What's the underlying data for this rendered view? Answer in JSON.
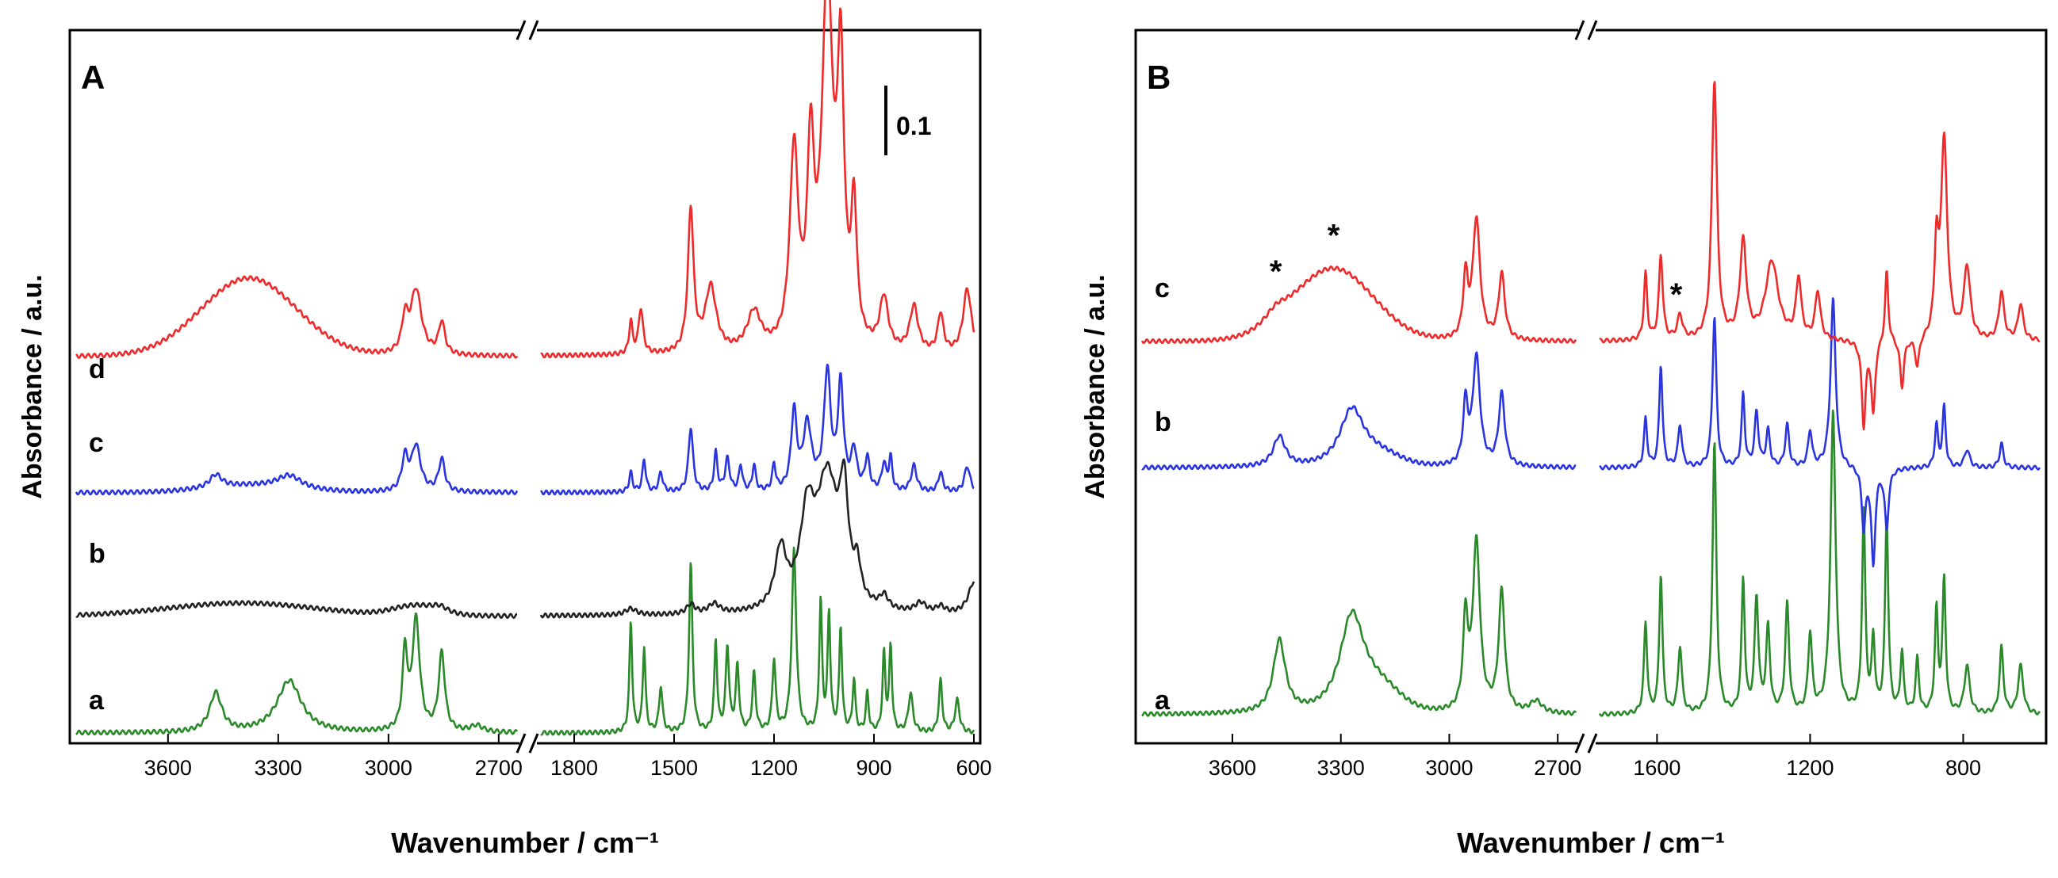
{
  "figure": {
    "panels": [
      "A",
      "B"
    ],
    "scale_bar_label": "0.1"
  },
  "colors": {
    "a": "#2a8a2a",
    "b_black": "#222222",
    "blue": "#2a35e0",
    "red": "#ee2a2a"
  },
  "chart_data": [
    {
      "type": "line",
      "panel": "A",
      "ylabel": "Absorbance / a.u.",
      "xlabel": "Wavenumber / cm⁻¹",
      "x_axis_break": true,
      "x_segments": [
        {
          "xlim": [
            3850,
            2650
          ],
          "ticks": [
            3600,
            3300,
            3000,
            2700
          ]
        },
        {
          "xlim": [
            1900,
            600
          ],
          "ticks": [
            1800,
            1500,
            1200,
            900,
            600
          ]
        }
      ],
      "series": [
        {
          "name": "a",
          "color": "#2a8a2a",
          "peaks_high": [
            [
              3470,
              0.06,
              20
            ],
            [
              3270,
              0.08,
              40
            ],
            [
              2955,
              0.12,
              8
            ],
            [
              2925,
              0.17,
              12
            ],
            [
              2855,
              0.12,
              10
            ],
            [
              2760,
              0.01,
              20
            ]
          ],
          "peaks_low": [
            [
              1630,
              0.17,
              5
            ],
            [
              1590,
              0.13,
              5
            ],
            [
              1540,
              0.07,
              6
            ],
            [
              1450,
              0.26,
              6
            ],
            [
              1375,
              0.14,
              5
            ],
            [
              1340,
              0.13,
              6
            ],
            [
              1310,
              0.1,
              6
            ],
            [
              1260,
              0.09,
              6
            ],
            [
              1200,
              0.11,
              6
            ],
            [
              1140,
              0.28,
              8
            ],
            [
              1060,
              0.2,
              5
            ],
            [
              1035,
              0.18,
              5
            ],
            [
              1000,
              0.16,
              5
            ],
            [
              960,
              0.08,
              5
            ],
            [
              920,
              0.06,
              5
            ],
            [
              870,
              0.12,
              5
            ],
            [
              850,
              0.13,
              5
            ],
            [
              790,
              0.06,
              8
            ],
            [
              700,
              0.08,
              6
            ],
            [
              650,
              0.05,
              8
            ]
          ],
          "baseline": 0.0
        },
        {
          "name": "b",
          "color": "#222222",
          "peaks_high": [
            [
              3400,
              0.02,
              200
            ],
            [
              2925,
              0.015,
              60
            ],
            [
              2860,
              0.008,
              25
            ]
          ],
          "peaks_low": [
            [
              1630,
              0.01,
              20
            ],
            [
              1450,
              0.015,
              15
            ],
            [
              1380,
              0.015,
              20
            ],
            [
              1180,
              0.09,
              20
            ],
            [
              1100,
              0.13,
              25
            ],
            [
              1040,
              0.2,
              40
            ],
            [
              990,
              0.15,
              15
            ],
            [
              950,
              0.05,
              12
            ],
            [
              870,
              0.02,
              15
            ],
            [
              760,
              0.015,
              20
            ],
            [
              700,
              0.01,
              15
            ],
            [
              600,
              0.05,
              20
            ]
          ],
          "baseline": 0.18
        },
        {
          "name": "c",
          "color": "#2a35e0",
          "peaks_high": [
            [
              3470,
              0.02,
              20
            ],
            [
              3270,
              0.02,
              40
            ],
            [
              3380,
              0.01,
              120
            ],
            [
              2955,
              0.05,
              10
            ],
            [
              2925,
              0.07,
              15
            ],
            [
              2855,
              0.05,
              10
            ]
          ],
          "peaks_low": [
            [
              1630,
              0.03,
              6
            ],
            [
              1590,
              0.05,
              6
            ],
            [
              1540,
              0.03,
              7
            ],
            [
              1450,
              0.1,
              8
            ],
            [
              1375,
              0.06,
              6
            ],
            [
              1340,
              0.05,
              8
            ],
            [
              1300,
              0.04,
              6
            ],
            [
              1260,
              0.04,
              6
            ],
            [
              1200,
              0.04,
              6
            ],
            [
              1140,
              0.12,
              10
            ],
            [
              1100,
              0.1,
              15
            ],
            [
              1040,
              0.18,
              12
            ],
            [
              1000,
              0.16,
              10
            ],
            [
              960,
              0.06,
              10
            ],
            [
              920,
              0.05,
              8
            ],
            [
              870,
              0.04,
              8
            ],
            [
              850,
              0.05,
              6
            ],
            [
              780,
              0.04,
              10
            ],
            [
              700,
              0.03,
              8
            ],
            [
              620,
              0.04,
              10
            ]
          ],
          "baseline": 0.37
        },
        {
          "name": "d",
          "color": "#ee2a2a",
          "peaks_high": [
            [
              3380,
              0.12,
              130
            ],
            [
              2955,
              0.05,
              10
            ],
            [
              2925,
              0.1,
              18
            ],
            [
              2855,
              0.05,
              10
            ]
          ],
          "peaks_low": [
            [
              1630,
              0.05,
              6
            ],
            [
              1600,
              0.07,
              8
            ],
            [
              1450,
              0.22,
              10
            ],
            [
              1390,
              0.1,
              20
            ],
            [
              1260,
              0.06,
              25
            ],
            [
              1140,
              0.3,
              15
            ],
            [
              1090,
              0.28,
              12
            ],
            [
              1040,
              0.55,
              20
            ],
            [
              1000,
              0.4,
              12
            ],
            [
              960,
              0.2,
              10
            ],
            [
              870,
              0.08,
              15
            ],
            [
              780,
              0.07,
              15
            ],
            [
              700,
              0.06,
              10
            ],
            [
              620,
              0.1,
              15
            ]
          ],
          "baseline": 0.58
        }
      ]
    },
    {
      "type": "line",
      "panel": "B",
      "ylabel": "Absorbance / a.u.",
      "xlabel": "Wavenumber / cm⁻¹",
      "x_axis_break": true,
      "x_segments": [
        {
          "xlim": [
            3850,
            2650
          ],
          "ticks": [
            3600,
            3300,
            3000,
            2700
          ]
        },
        {
          "xlim": [
            1750,
            600
          ],
          "ticks": [
            1600,
            1200,
            800
          ]
        }
      ],
      "annotations": [
        {
          "text": "*",
          "x": 3480,
          "segment": 0
        },
        {
          "text": "*",
          "x": 3320,
          "segment": 0
        },
        {
          "text": "*",
          "x": 1550,
          "segment": 1
        }
      ],
      "series": [
        {
          "name": "a",
          "color": "#2a8a2a",
          "peaks_high": [
            [
              3470,
              0.12,
              20
            ],
            [
              3270,
              0.15,
              40
            ],
            [
              3200,
              0.04,
              60
            ],
            [
              2955,
              0.15,
              8
            ],
            [
              2925,
              0.28,
              12
            ],
            [
              2855,
              0.2,
              10
            ],
            [
              2760,
              0.02,
              20
            ]
          ],
          "peaks_low": [
            [
              1630,
              0.15,
              5
            ],
            [
              1590,
              0.23,
              5
            ],
            [
              1540,
              0.11,
              6
            ],
            [
              1450,
              0.45,
              6
            ],
            [
              1375,
              0.22,
              5
            ],
            [
              1340,
              0.19,
              6
            ],
            [
              1310,
              0.14,
              6
            ],
            [
              1260,
              0.18,
              6
            ],
            [
              1200,
              0.13,
              6
            ],
            [
              1140,
              0.5,
              8
            ],
            [
              1060,
              0.33,
              5
            ],
            [
              1035,
              0.12,
              5
            ],
            [
              1000,
              0.33,
              5
            ],
            [
              960,
              0.1,
              5
            ],
            [
              920,
              0.09,
              5
            ],
            [
              870,
              0.17,
              5
            ],
            [
              850,
              0.22,
              5
            ],
            [
              790,
              0.08,
              8
            ],
            [
              700,
              0.11,
              6
            ],
            [
              650,
              0.08,
              8
            ]
          ],
          "baseline": 0.0
        },
        {
          "name": "b",
          "color": "#2a35e0",
          "peaks_high": [
            [
              3470,
              0.05,
              20
            ],
            [
              3270,
              0.09,
              40
            ],
            [
              3200,
              0.02,
              60
            ],
            [
              2955,
              0.1,
              8
            ],
            [
              2925,
              0.18,
              12
            ],
            [
              2855,
              0.12,
              10
            ]
          ],
          "peaks_low": [
            [
              1630,
              0.08,
              5
            ],
            [
              1590,
              0.17,
              5
            ],
            [
              1540,
              0.07,
              6
            ],
            [
              1450,
              0.25,
              6
            ],
            [
              1375,
              0.12,
              5
            ],
            [
              1340,
              0.09,
              6
            ],
            [
              1310,
              0.06,
              6
            ],
            [
              1260,
              0.07,
              6
            ],
            [
              1200,
              0.06,
              6
            ],
            [
              1140,
              0.28,
              8
            ],
            [
              1060,
              -0.1,
              6
            ],
            [
              1035,
              -0.16,
              6
            ],
            [
              1000,
              -0.1,
              6
            ],
            [
              870,
              0.07,
              5
            ],
            [
              850,
              0.1,
              5
            ],
            [
              790,
              0.03,
              8
            ],
            [
              700,
              0.04,
              6
            ]
          ],
          "baseline": 0.41
        },
        {
          "name": "c",
          "color": "#ee2a2a",
          "peaks_high": [
            [
              3480,
              0.02,
              40
            ],
            [
              3320,
              0.12,
              110
            ],
            [
              2955,
              0.1,
              8
            ],
            [
              2925,
              0.2,
              12
            ],
            [
              2855,
              0.11,
              10
            ]
          ],
          "peaks_low": [
            [
              1630,
              0.11,
              5
            ],
            [
              1590,
              0.14,
              6
            ],
            [
              1540,
              0.04,
              8
            ],
            [
              1450,
              0.43,
              8
            ],
            [
              1375,
              0.16,
              10
            ],
            [
              1300,
              0.13,
              20
            ],
            [
              1230,
              0.1,
              8
            ],
            [
              1180,
              0.08,
              8
            ],
            [
              1060,
              -0.14,
              6
            ],
            [
              1035,
              -0.12,
              6
            ],
            [
              1000,
              0.12,
              5
            ],
            [
              960,
              -0.08,
              6
            ],
            [
              920,
              -0.05,
              6
            ],
            [
              870,
              0.14,
              6
            ],
            [
              850,
              0.33,
              10
            ],
            [
              790,
              0.12,
              10
            ],
            [
              700,
              0.08,
              8
            ],
            [
              650,
              0.06,
              8
            ]
          ],
          "baseline": 0.62
        }
      ]
    }
  ]
}
